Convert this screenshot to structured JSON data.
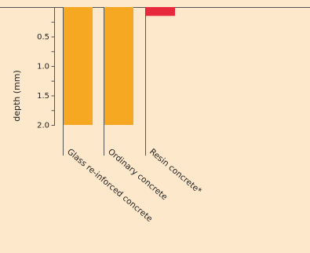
{
  "chart_data": {
    "type": "bar",
    "orientation": "vertical-downward",
    "categories": [
      "Glass re-inforced concrete",
      "Ordinary concrete",
      "Resin concrete*"
    ],
    "values": [
      2.0,
      2.0,
      0.15
    ],
    "ylabel": "depth (mm)",
    "ylim": [
      0,
      2.0
    ],
    "yticks": [
      0.5,
      1.0,
      1.5,
      2.0
    ],
    "ytick_labels": [
      "0.5",
      "1.0",
      "1.5",
      "2.0"
    ],
    "minor_tick_step": 0.25,
    "colors": [
      "#f7a823",
      "#f7a823",
      "#e8283c"
    ],
    "grid": false,
    "legend": "none"
  }
}
